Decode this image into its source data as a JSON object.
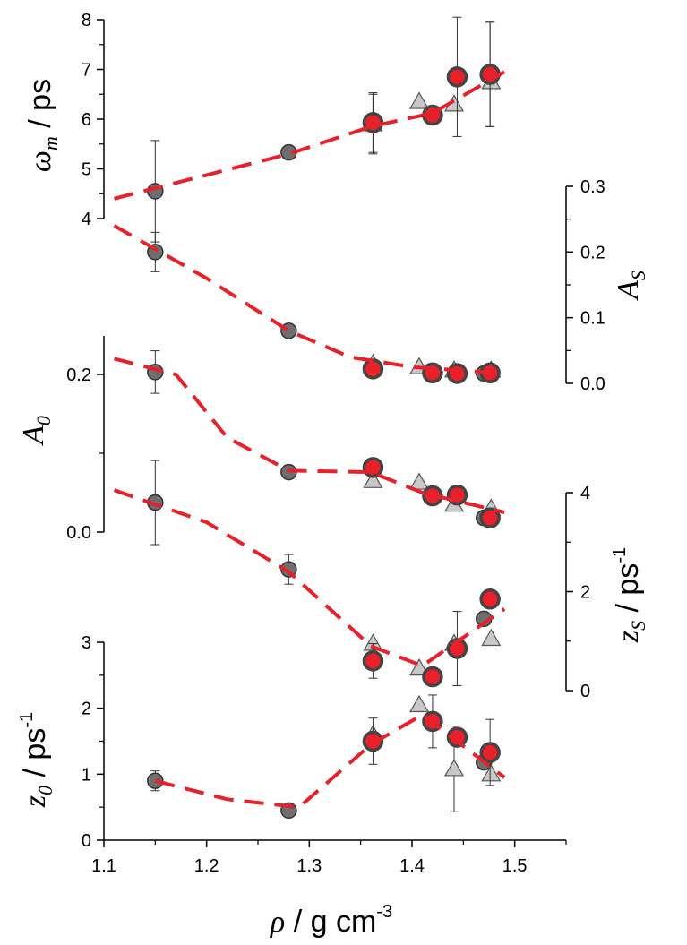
{
  "x_axis": {
    "label": {
      "symbol": "ρ",
      "unit": " / g cm",
      "exp": "-3"
    },
    "range": [
      1.1,
      1.55
    ],
    "ticks": [
      "1.1",
      "1.2",
      "1.3",
      "1.4",
      "1.5"
    ]
  },
  "colors": {
    "grey_circle": "#6e6e6e",
    "light_triangle": "#c8c8c8",
    "red_circle": "#e8202a",
    "fit_line": "#e8202a"
  },
  "chart_data": [
    {
      "type": "scatter",
      "panel": "omega_m",
      "ylabel": {
        "main": "ω",
        "sub": "m",
        "unit": " / ps"
      },
      "y_axis_side": "left",
      "ylim": [
        4,
        8
      ],
      "yticks": [
        "4",
        "5",
        "6",
        "7",
        "8"
      ],
      "series": [
        {
          "marker": "grey-circle",
          "points": [
            {
              "x": 1.15,
              "y": 4.55,
              "err": 1.02
            },
            {
              "x": 1.28,
              "y": 5.33,
              "err": 0.0
            },
            {
              "x": 1.476,
              "y": 6.9,
              "err": 1.05
            }
          ]
        },
        {
          "marker": "light-triangle",
          "points": [
            {
              "x": 1.362,
              "y": 5.9,
              "err": 0.6
            },
            {
              "x": 1.407,
              "y": 6.35,
              "err": 0.0
            },
            {
              "x": 1.441,
              "y": 6.3,
              "err": 0.0
            },
            {
              "x": 1.477,
              "y": 6.75,
              "err": 0.0
            }
          ]
        },
        {
          "marker": "red-circle",
          "points": [
            {
              "x": 1.362,
              "y": 5.93,
              "err": 0.6
            },
            {
              "x": 1.42,
              "y": 6.08,
              "err": 0.0
            },
            {
              "x": 1.444,
              "y": 6.85,
              "err": 1.2
            },
            {
              "x": 1.476,
              "y": 6.9,
              "err": 1.05
            }
          ]
        },
        {
          "marker": "fit-line",
          "points": [
            {
              "x": 1.11,
              "y": 4.4
            },
            {
              "x": 1.28,
              "y": 5.3
            },
            {
              "x": 1.36,
              "y": 5.85
            },
            {
              "x": 1.42,
              "y": 6.12
            },
            {
              "x": 1.49,
              "y": 6.95
            }
          ]
        }
      ]
    },
    {
      "type": "scatter",
      "panel": "A_S",
      "ylabel": {
        "main": "A",
        "sub": "S",
        "unit": ""
      },
      "y_axis_side": "right",
      "ylim": [
        0.0,
        0.3
      ],
      "yticks": [
        "0.0",
        "0.1",
        "0.2",
        "0.3"
      ],
      "series": [
        {
          "marker": "grey-circle",
          "points": [
            {
              "x": 1.15,
              "y": 0.2,
              "err": 0.03
            },
            {
              "x": 1.28,
              "y": 0.08,
              "err": 0.0
            },
            {
              "x": 1.47,
              "y": 0.015,
              "err": 0.0
            }
          ]
        },
        {
          "marker": "light-triangle",
          "points": [
            {
              "x": 1.362,
              "y": 0.03,
              "err": 0.0
            },
            {
              "x": 1.407,
              "y": 0.025,
              "err": 0.0
            },
            {
              "x": 1.441,
              "y": 0.02,
              "err": 0.0
            },
            {
              "x": 1.477,
              "y": 0.02,
              "err": 0.0
            }
          ]
        },
        {
          "marker": "red-circle",
          "points": [
            {
              "x": 1.362,
              "y": 0.022,
              "err": 0.0
            },
            {
              "x": 1.42,
              "y": 0.016,
              "err": 0.0
            },
            {
              "x": 1.444,
              "y": 0.015,
              "err": 0.0
            },
            {
              "x": 1.476,
              "y": 0.016,
              "err": 0.0
            }
          ]
        },
        {
          "marker": "fit-line",
          "points": [
            {
              "x": 1.11,
              "y": 0.24
            },
            {
              "x": 1.2,
              "y": 0.16
            },
            {
              "x": 1.28,
              "y": 0.08
            },
            {
              "x": 1.34,
              "y": 0.04
            },
            {
              "x": 1.4,
              "y": 0.025
            },
            {
              "x": 1.49,
              "y": 0.015
            }
          ]
        }
      ]
    },
    {
      "type": "scatter",
      "panel": "A_0",
      "ylabel": {
        "main": "A",
        "sub": "0",
        "unit": ""
      },
      "y_axis_side": "left",
      "ylim": [
        0.0,
        0.25
      ],
      "yticks": [
        "0.0",
        "0.2"
      ],
      "series": [
        {
          "marker": "grey-circle",
          "points": [
            {
              "x": 1.15,
              "y": 0.203,
              "err": 0.027
            },
            {
              "x": 1.28,
              "y": 0.076,
              "err": 0.0
            },
            {
              "x": 1.47,
              "y": 0.018,
              "err": 0.0
            }
          ]
        },
        {
          "marker": "light-triangle",
          "points": [
            {
              "x": 1.362,
              "y": 0.065,
              "err": 0.0
            },
            {
              "x": 1.407,
              "y": 0.063,
              "err": 0.0
            },
            {
              "x": 1.441,
              "y": 0.035,
              "err": 0.0
            },
            {
              "x": 1.477,
              "y": 0.03,
              "err": 0.0
            }
          ]
        },
        {
          "marker": "red-circle",
          "points": [
            {
              "x": 1.362,
              "y": 0.082,
              "err": 0.0
            },
            {
              "x": 1.42,
              "y": 0.046,
              "err": 0.0
            },
            {
              "x": 1.444,
              "y": 0.047,
              "err": 0.0
            },
            {
              "x": 1.476,
              "y": 0.018,
              "err": 0.0
            }
          ]
        },
        {
          "marker": "fit-line",
          "points": [
            {
              "x": 1.11,
              "y": 0.22
            },
            {
              "x": 1.17,
              "y": 0.2
            },
            {
              "x": 1.22,
              "y": 0.12
            },
            {
              "x": 1.28,
              "y": 0.078
            },
            {
              "x": 1.36,
              "y": 0.076
            },
            {
              "x": 1.41,
              "y": 0.05
            },
            {
              "x": 1.49,
              "y": 0.025
            }
          ]
        }
      ]
    },
    {
      "type": "scatter",
      "panel": "z_S",
      "ylabel": {
        "main": "z",
        "sub": "S",
        "unit": " / ps",
        "exp": "-1"
      },
      "y_axis_side": "right",
      "ylim": [
        0,
        4
      ],
      "yticks": [
        "0",
        "2",
        "4"
      ],
      "series": [
        {
          "marker": "grey-circle",
          "points": [
            {
              "x": 1.15,
              "y": 3.8,
              "err": 0.85
            },
            {
              "x": 1.28,
              "y": 2.45,
              "err": 0.3
            },
            {
              "x": 1.47,
              "y": 1.45,
              "err": 0.0
            }
          ]
        },
        {
          "marker": "light-triangle",
          "points": [
            {
              "x": 1.362,
              "y": 0.95,
              "err": 0.0
            },
            {
              "x": 1.407,
              "y": 0.45,
              "err": 0.0
            },
            {
              "x": 1.441,
              "y": 0.95,
              "err": 0.0
            },
            {
              "x": 1.477,
              "y": 1.05,
              "err": 0.0
            }
          ]
        },
        {
          "marker": "red-circle",
          "points": [
            {
              "x": 1.362,
              "y": 0.6,
              "err": 0.35
            },
            {
              "x": 1.42,
              "y": 0.28,
              "err": 0.0
            },
            {
              "x": 1.444,
              "y": 0.85,
              "err": 0.75
            },
            {
              "x": 1.476,
              "y": 1.85,
              "err": 0.0
            }
          ]
        },
        {
          "marker": "fit-line",
          "points": [
            {
              "x": 1.11,
              "y": 4.05
            },
            {
              "x": 1.2,
              "y": 3.4
            },
            {
              "x": 1.28,
              "y": 2.4
            },
            {
              "x": 1.36,
              "y": 0.9
            },
            {
              "x": 1.41,
              "y": 0.5
            },
            {
              "x": 1.49,
              "y": 1.65
            }
          ]
        }
      ]
    },
    {
      "type": "scatter",
      "panel": "z_0",
      "ylabel": {
        "main": "z",
        "sub": "0",
        "unit": " / ps",
        "exp": "-1"
      },
      "y_axis_side": "left",
      "ylim": [
        0,
        3
      ],
      "yticks": [
        "0",
        "1",
        "2",
        "3"
      ],
      "series": [
        {
          "marker": "grey-circle",
          "points": [
            {
              "x": 1.15,
              "y": 0.9,
              "err": 0.15
            },
            {
              "x": 1.28,
              "y": 0.45,
              "err": 0.0
            },
            {
              "x": 1.47,
              "y": 1.18,
              "err": 0.0
            }
          ]
        },
        {
          "marker": "light-triangle",
          "points": [
            {
              "x": 1.362,
              "y": 1.6,
              "err": 0.0
            },
            {
              "x": 1.407,
              "y": 2.05,
              "err": 0.0
            },
            {
              "x": 1.441,
              "y": 1.08,
              "err": 0.65
            },
            {
              "x": 1.477,
              "y": 1.0,
              "err": 0.0
            }
          ]
        },
        {
          "marker": "red-circle",
          "points": [
            {
              "x": 1.362,
              "y": 1.5,
              "err": 0.35
            },
            {
              "x": 1.42,
              "y": 1.8,
              "err": 0.4
            },
            {
              "x": 1.444,
              "y": 1.56,
              "err": 0.0
            },
            {
              "x": 1.476,
              "y": 1.33,
              "err": 0.5
            }
          ]
        },
        {
          "marker": "fit-line",
          "points": [
            {
              "x": 1.15,
              "y": 0.9
            },
            {
              "x": 1.22,
              "y": 0.62
            },
            {
              "x": 1.29,
              "y": 0.5
            },
            {
              "x": 1.36,
              "y": 1.45
            },
            {
              "x": 1.41,
              "y": 1.9
            },
            {
              "x": 1.49,
              "y": 0.95
            }
          ]
        }
      ]
    }
  ]
}
